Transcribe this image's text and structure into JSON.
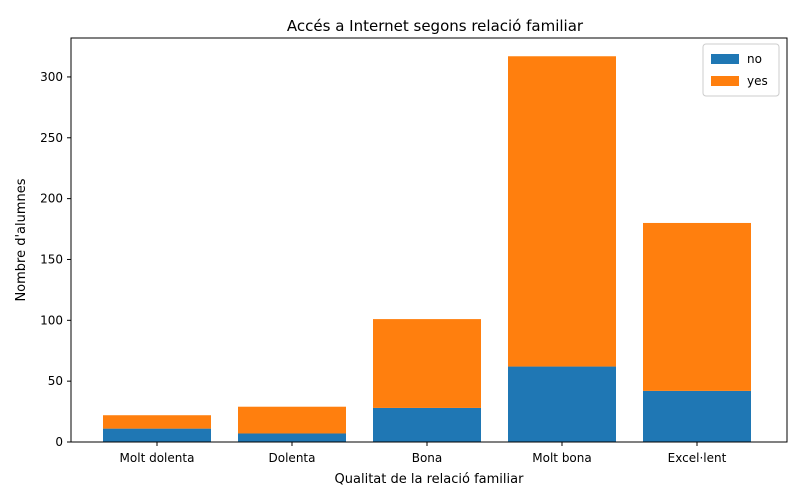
{
  "chart_data": {
    "type": "bar",
    "stacked": true,
    "title": "Accés a Internet segons relació familiar",
    "xlabel": "Qualitat de la relació familiar",
    "ylabel": "Nombre d'alumnes",
    "categories": [
      "Molt dolenta",
      "Dolenta",
      "Bona",
      "Molt bona",
      "Excel·lent"
    ],
    "series": [
      {
        "name": "no",
        "color": "#1f77b4",
        "values": [
          11,
          7,
          28,
          62,
          42
        ]
      },
      {
        "name": "yes",
        "color": "#ff7f0e",
        "values": [
          11,
          22,
          73,
          255,
          138
        ]
      }
    ],
    "ylim": [
      0,
      332
    ],
    "yticks": [
      0,
      50,
      100,
      150,
      200,
      250,
      300
    ],
    "grid": false,
    "legend_position": "top-right"
  }
}
